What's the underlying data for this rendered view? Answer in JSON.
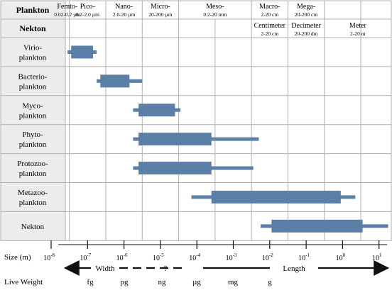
{
  "header": {
    "plankton_label": "Plankton",
    "nekton_label": "Nekton",
    "size_classes": [
      {
        "name": "Femto-",
        "range": "0.02-0.2 µm"
      },
      {
        "name": "Pico-",
        "range": "0.2-2.0 µm"
      },
      {
        "name": "Nano-",
        "range": "2.0-20 µm"
      },
      {
        "name": "Micro-",
        "range": "20-200 µm"
      },
      {
        "name": "Meso-",
        "range": "0.2-20 mm"
      },
      {
        "name": "Macro-",
        "range": "2-20 cm"
      },
      {
        "name": "Mega-",
        "range": "20-200 cm"
      }
    ],
    "nekton_classes": [
      {
        "name": "Centimeter",
        "range": "2-20 cm"
      },
      {
        "name": "Decimeter",
        "range": "20-200 dm"
      },
      {
        "name": "Meter",
        "range": "2-20 m"
      }
    ]
  },
  "rows": [
    {
      "label": [
        "Virio-",
        "plankton"
      ],
      "line": [
        -7.55,
        -6.75
      ],
      "bar": [
        -7.45,
        -6.85
      ]
    },
    {
      "label": [
        "Bacterio-",
        "plankton"
      ],
      "line": [
        -6.75,
        -5.5
      ],
      "bar": [
        -6.65,
        -5.85
      ]
    },
    {
      "label": [
        "Myco-",
        "plankton"
      ],
      "line": [
        -5.75,
        -4.45
      ],
      "bar": [
        -5.6,
        -4.6
      ]
    },
    {
      "label": [
        "Phyto-",
        "plankton"
      ],
      "line": [
        -5.75,
        -2.3
      ],
      "bar": [
        -5.6,
        -3.6
      ]
    },
    {
      "label": [
        "Protozoo-",
        "plankton"
      ],
      "line": [
        -5.75,
        -2.45
      ],
      "bar": [
        -5.6,
        -3.6
      ]
    },
    {
      "label": [
        "Metazoo-",
        "plankton"
      ],
      "line": [
        -4.15,
        0.35
      ],
      "bar": [
        -3.6,
        -0.05
      ]
    },
    {
      "label": [
        "Nekton"
      ],
      "line": [
        -2.25,
        1.25
      ],
      "bar": [
        -1.95,
        0.55
      ]
    }
  ],
  "axis": {
    "size_label": "Size (m)",
    "ticks": [
      {
        "base": "10",
        "exp": "-8"
      },
      {
        "base": "10",
        "exp": "-7"
      },
      {
        "base": "10",
        "exp": "-6"
      },
      {
        "base": "10",
        "exp": "-5"
      },
      {
        "base": "10",
        "exp": "-4"
      },
      {
        "base": "10",
        "exp": "-3"
      },
      {
        "base": "10",
        "exp": "-2"
      },
      {
        "base": "10",
        "exp": "-1"
      },
      {
        "base": "10",
        "exp": "0"
      },
      {
        "base": "10",
        "exp": "1"
      }
    ],
    "width_label": "Width",
    "question_label": "?",
    "length_label": "Length",
    "weight_label": "Live Weight",
    "weights": [
      "fg",
      "pg",
      "ng",
      "µg",
      "mg",
      "g"
    ]
  },
  "colors": {
    "bar": "#5b7fa6",
    "grid": "#b0b0b0",
    "label_bg": "#ececec"
  }
}
